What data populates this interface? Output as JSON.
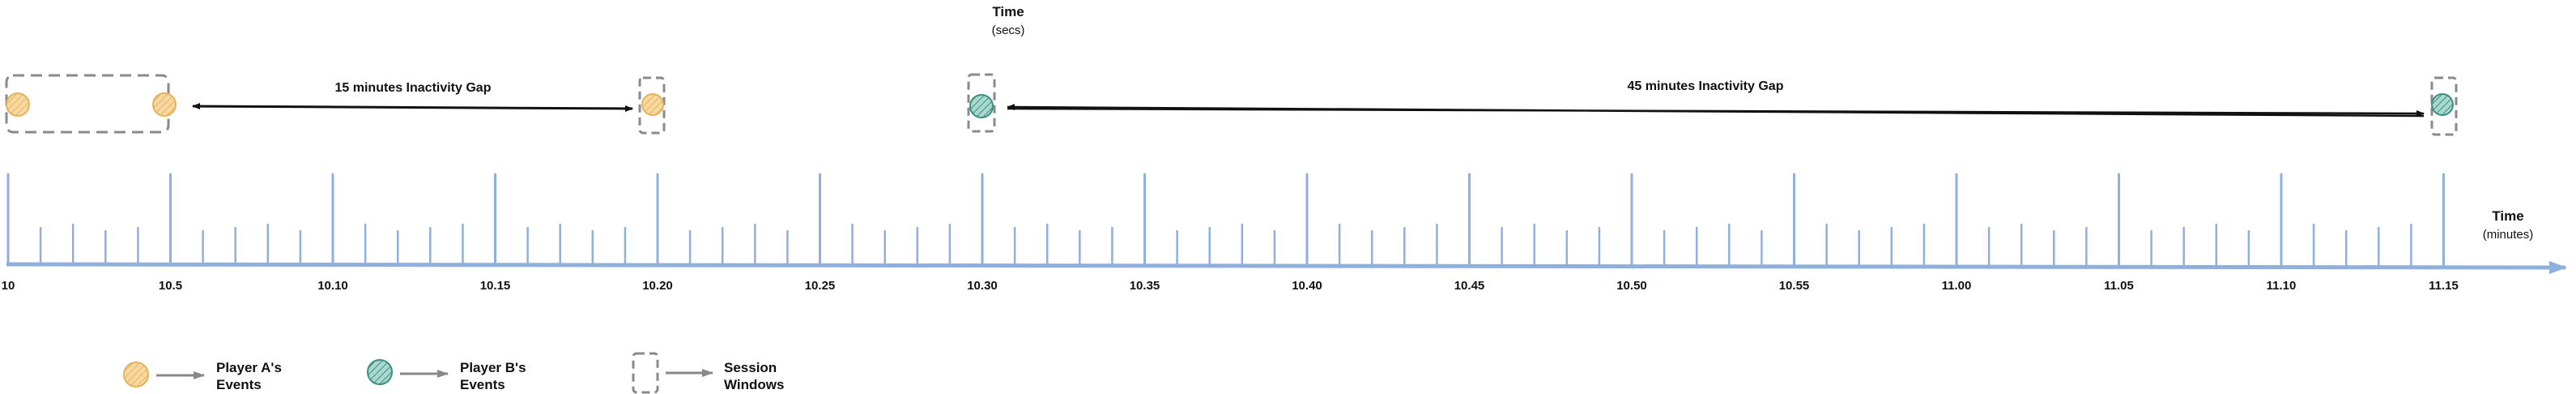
{
  "header": {
    "title": "Time",
    "unit": "(secs)"
  },
  "gaps": [
    {
      "label": "15 minutes Inactivity Gap"
    },
    {
      "label": "45 minutes Inactivity Gap"
    }
  ],
  "axis": {
    "title": "Time",
    "unit": "(minutes)",
    "tick_labels": [
      "10",
      "10.5",
      "10.10",
      "10.15",
      "10.20",
      "10.25",
      "10.30",
      "10.35",
      "10.40",
      "10.45",
      "10.50",
      "10.55",
      "11.00",
      "11.05",
      "11.10",
      "11.15"
    ],
    "color": "#8fb0dd"
  },
  "legend": [
    {
      "label_line1": "Player A's",
      "label_line2": "Events",
      "icon": "player-a-event-icon"
    },
    {
      "label_line1": "Player B's",
      "label_line2": "Events",
      "icon": "player-b-event-icon"
    },
    {
      "label_line1": "Session",
      "label_line2": "Windows",
      "icon": "session-window-icon"
    }
  ],
  "colors": {
    "player_a_fill": "#f7d9a0",
    "player_a_stroke": "#e3b35f",
    "player_b_fill": "#a9d8cf",
    "player_b_stroke": "#3f8f7f",
    "session_window": "#8a8a8a",
    "arrow": "#111111",
    "legend_arrow": "#888888"
  }
}
